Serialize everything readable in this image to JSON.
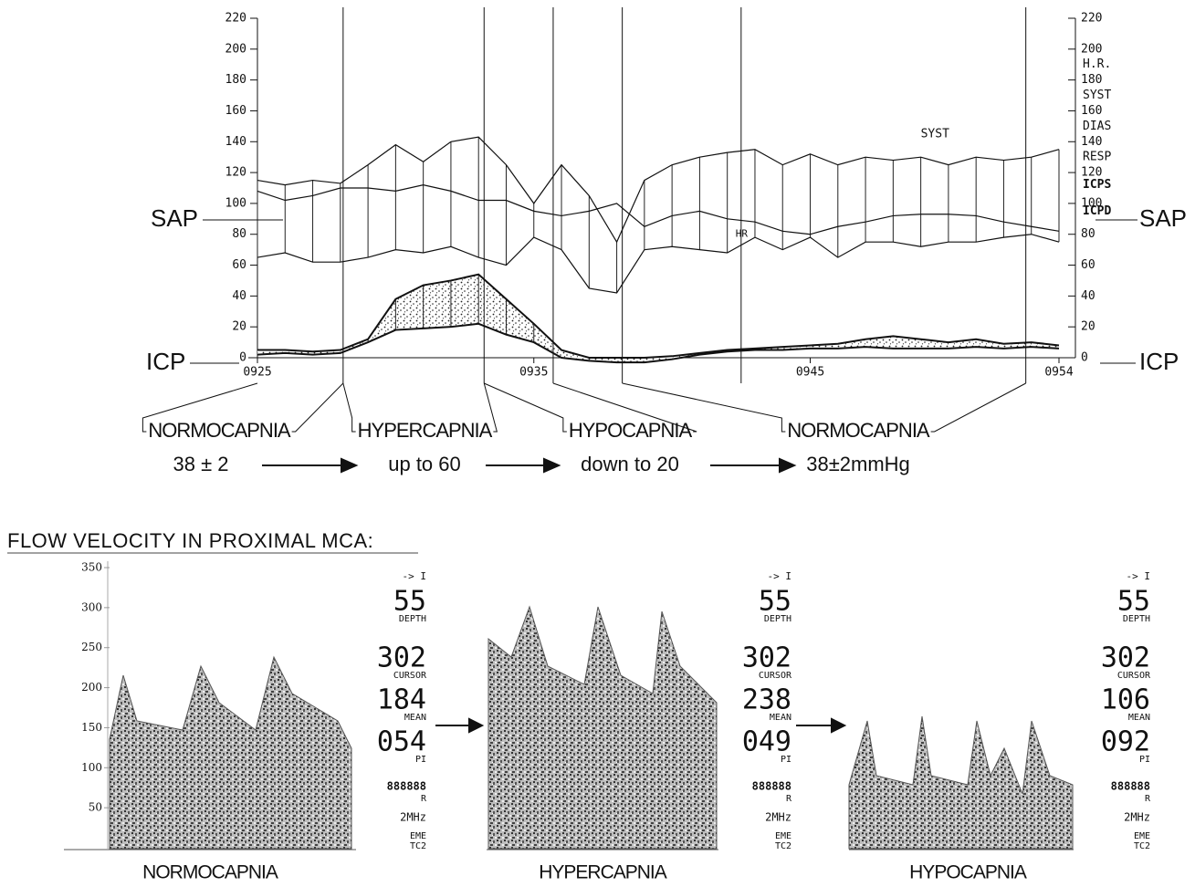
{
  "chart_data": [
    {
      "type": "line",
      "x": [
        25,
        26,
        27,
        28,
        29,
        30,
        31,
        32,
        33,
        34,
        35,
        36,
        37,
        38,
        39,
        40,
        41,
        42,
        43,
        44,
        45,
        46,
        47,
        48,
        49,
        50,
        51,
        52,
        53,
        54
      ],
      "xlim": [
        25,
        54
      ],
      "xticks": [
        {
          "value": 25,
          "label": "0925"
        },
        {
          "value": 35,
          "label": "0935"
        },
        {
          "value": 45,
          "label": "0945"
        },
        {
          "value": 54,
          "label": "0954"
        }
      ],
      "ylim": [
        0,
        220
      ],
      "yticks": [
        0,
        20,
        40,
        60,
        80,
        100,
        120,
        140,
        160,
        180,
        200,
        220
      ],
      "y2lim": [
        0,
        220
      ],
      "y2ticks": [
        0,
        20,
        40,
        60,
        80,
        100,
        120,
        140,
        160,
        180,
        200,
        220
      ],
      "series": [
        {
          "name": "H.R.",
          "color": "#111111",
          "values": [
            108,
            102,
            105,
            110,
            110,
            108,
            112,
            108,
            102,
            102,
            95,
            92,
            95,
            100,
            85,
            92,
            95,
            90,
            88,
            82,
            80,
            85,
            88,
            92,
            93,
            93,
            92,
            88,
            85,
            82
          ]
        },
        {
          "name": "SYST",
          "color": "#111111",
          "values": [
            115,
            112,
            115,
            113,
            125,
            138,
            127,
            140,
            143,
            125,
            100,
            125,
            105,
            75,
            115,
            125,
            130,
            133,
            135,
            125,
            132,
            125,
            130,
            128,
            130,
            125,
            130,
            128,
            130,
            135
          ]
        },
        {
          "name": "DIAS",
          "color": "#111111",
          "values": [
            65,
            68,
            62,
            62,
            65,
            70,
            68,
            72,
            65,
            60,
            78,
            70,
            45,
            42,
            70,
            72,
            70,
            68,
            78,
            70,
            78,
            65,
            75,
            75,
            72,
            75,
            75,
            78,
            80,
            75
          ]
        },
        {
          "name": "ICPS",
          "color": "#111111",
          "values": [
            5,
            5,
            4,
            5,
            12,
            38,
            47,
            50,
            54,
            38,
            22,
            5,
            0,
            0,
            0,
            1,
            3,
            5,
            6,
            7,
            8,
            9,
            12,
            14,
            12,
            10,
            12,
            9,
            10,
            8
          ]
        },
        {
          "name": "ICPD",
          "color": "#111111",
          "values": [
            2,
            3,
            2,
            3,
            10,
            18,
            19,
            20,
            22,
            15,
            10,
            0,
            -2,
            -3,
            -3,
            -1,
            2,
            4,
            5,
            5,
            6,
            6,
            7,
            6,
            6,
            6,
            7,
            6,
            7,
            6
          ]
        }
      ],
      "extra_legend": "RESP",
      "annotations": [
        "SYST",
        "HR"
      ],
      "side_labels": {
        "sap": "SAP",
        "icp": "ICP"
      },
      "phase_lines": [
        28.1,
        33.2,
        35.7,
        38.2,
        42.5,
        52.8
      ],
      "phases": [
        {
          "label": "NORMOCAPNIA",
          "paco2": "38 ± 2"
        },
        {
          "label": "HYPERCAPNIA",
          "paco2": "up to 60"
        },
        {
          "label": "HYPOCAPNIA",
          "paco2": "down to 20"
        },
        {
          "label": "NORMOCAPNIA",
          "paco2": "38±2mmHg"
        }
      ]
    }
  ],
  "flow_velocity": {
    "title": "FLOW VELOCITY IN PROXIMAL MCA:",
    "ylim": [
      0,
      350
    ],
    "yticks": [
      50,
      100,
      150,
      200,
      250,
      300,
      350
    ],
    "panels": [
      {
        "caption": "NORMOCAPNIA",
        "direction": "-> I",
        "readouts": [
          {
            "value": "55",
            "label": "DEPTH"
          },
          {
            "value": "302",
            "label": "CURSOR"
          },
          {
            "value": "184",
            "label": "MEAN"
          },
          {
            "value": "054",
            "label": "PI"
          },
          {
            "value": "888888",
            "label": "R"
          }
        ],
        "freq": "2MHz",
        "device": [
          "EME",
          "TC2"
        ]
      },
      {
        "caption": "HYPERCAPNIA",
        "direction": "-> I",
        "readouts": [
          {
            "value": "55",
            "label": "DEPTH"
          },
          {
            "value": "302",
            "label": "CURSOR"
          },
          {
            "value": "238",
            "label": "MEAN"
          },
          {
            "value": "049",
            "label": "PI"
          },
          {
            "value": "888888",
            "label": "R"
          }
        ],
        "freq": "2MHz",
        "device": [
          "EME",
          "TC2"
        ]
      },
      {
        "caption": "HYPOCAPNIA",
        "direction": "-> I",
        "readouts": [
          {
            "value": "55",
            "label": "DEPTH"
          },
          {
            "value": "302",
            "label": "CURSOR"
          },
          {
            "value": "106",
            "label": "MEAN"
          },
          {
            "value": "092",
            "label": "PI"
          },
          {
            "value": "888888",
            "label": "R"
          }
        ],
        "freq": "2MHz",
        "device": [
          "EME",
          "TC2"
        ]
      }
    ]
  }
}
